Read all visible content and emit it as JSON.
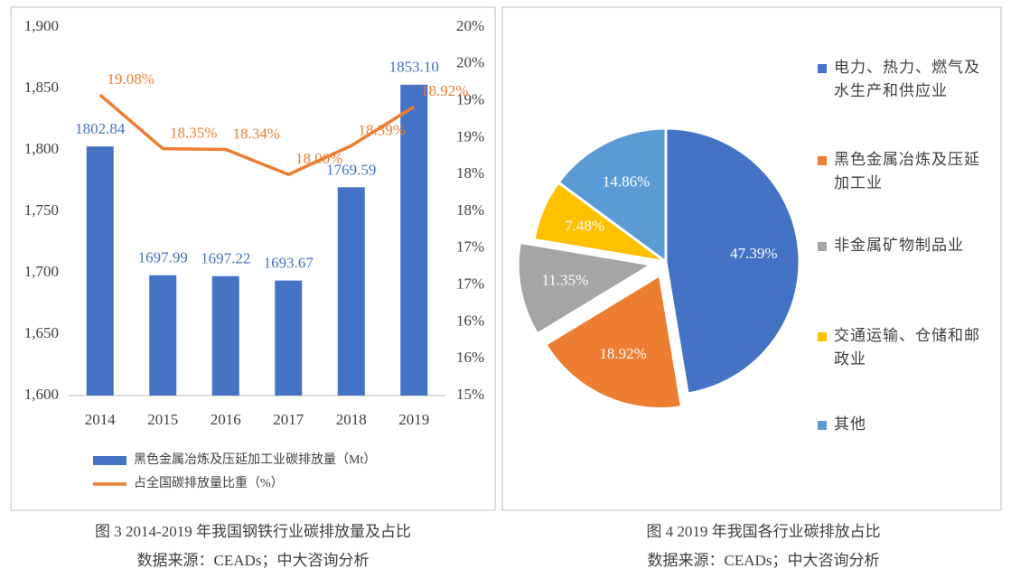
{
  "chart_data": [
    {
      "type": "bar",
      "categories": [
        "2014",
        "2015",
        "2016",
        "2017",
        "2018",
        "2019"
      ],
      "series": [
        {
          "name": "黑色金属冶炼及压延加工业碳排放量（Mt）",
          "type": "bar",
          "color": "#4472c4",
          "values": [
            1802.84,
            1697.99,
            1697.22,
            1693.67,
            1769.59,
            1853.1
          ],
          "value_labels": [
            "1802.84",
            "1697.99",
            "1697.22",
            "1693.67",
            "1769.59",
            "1853.10"
          ]
        },
        {
          "name": "占全国碳排放量比重（%）",
          "type": "line",
          "axis": "y2",
          "color": "#ed7d31",
          "values": [
            19.08,
            18.35,
            18.34,
            18.0,
            18.39,
            18.92
          ],
          "value_labels": [
            "19.08%",
            "18.35%",
            "18.34%",
            "18.00%",
            "18.39%",
            "18.92%"
          ]
        }
      ],
      "ylim": [
        1600,
        1900
      ],
      "yticks": [
        {
          "value": 1600,
          "label": "1,600"
        },
        {
          "value": 1650,
          "label": "1,650"
        },
        {
          "value": 1700,
          "label": "1,700"
        },
        {
          "value": 1750,
          "label": "1,750"
        },
        {
          "value": 1800,
          "label": "1,800"
        },
        {
          "value": 1850,
          "label": "1,850"
        },
        {
          "value": 1900,
          "label": "1,900"
        }
      ],
      "y2lim": [
        15,
        20
      ],
      "y2ticks": [
        {
          "value": 15,
          "label": "15%"
        },
        {
          "value": 15.5,
          "label": "16%"
        },
        {
          "value": 16,
          "label": "16%"
        },
        {
          "value": 16.5,
          "label": "17%"
        },
        {
          "value": 17,
          "label": "17%"
        },
        {
          "value": 17.5,
          "label": "18%"
        },
        {
          "value": 18,
          "label": "18%"
        },
        {
          "value": 18.5,
          "label": "19%"
        },
        {
          "value": 19,
          "label": "19%"
        },
        {
          "value": 19.5,
          "label": "20%"
        },
        {
          "value": 20,
          "label": "20%"
        }
      ],
      "grid": false,
      "caption": "图 3 2014-2019 年我国钢铁行业碳排放量及占比",
      "source": "数据来源：CEADs；中大咨询分析"
    },
    {
      "type": "pie",
      "categories": [
        "电力、热力、燃气及水生产和供应业",
        "黑色金属冶炼及压延加工业",
        "非金属矿物制品业",
        "交通运输、仓储和邮政业",
        "其他"
      ],
      "values": [
        47.39,
        18.92,
        11.35,
        7.48,
        14.86
      ],
      "value_labels": [
        "47.39%",
        "18.92%",
        "11.35%",
        "7.48%",
        "14.86%"
      ],
      "colors": [
        "#4472c4",
        "#ed7d31",
        "#a5a5a5",
        "#ffc000",
        "#5b9bd5"
      ],
      "explode": [
        false,
        true,
        true,
        false,
        false
      ],
      "caption": "图 4 2019 年我国各行业碳排放占比",
      "source": "数据来源：CEADs；中大咨询分析"
    }
  ]
}
